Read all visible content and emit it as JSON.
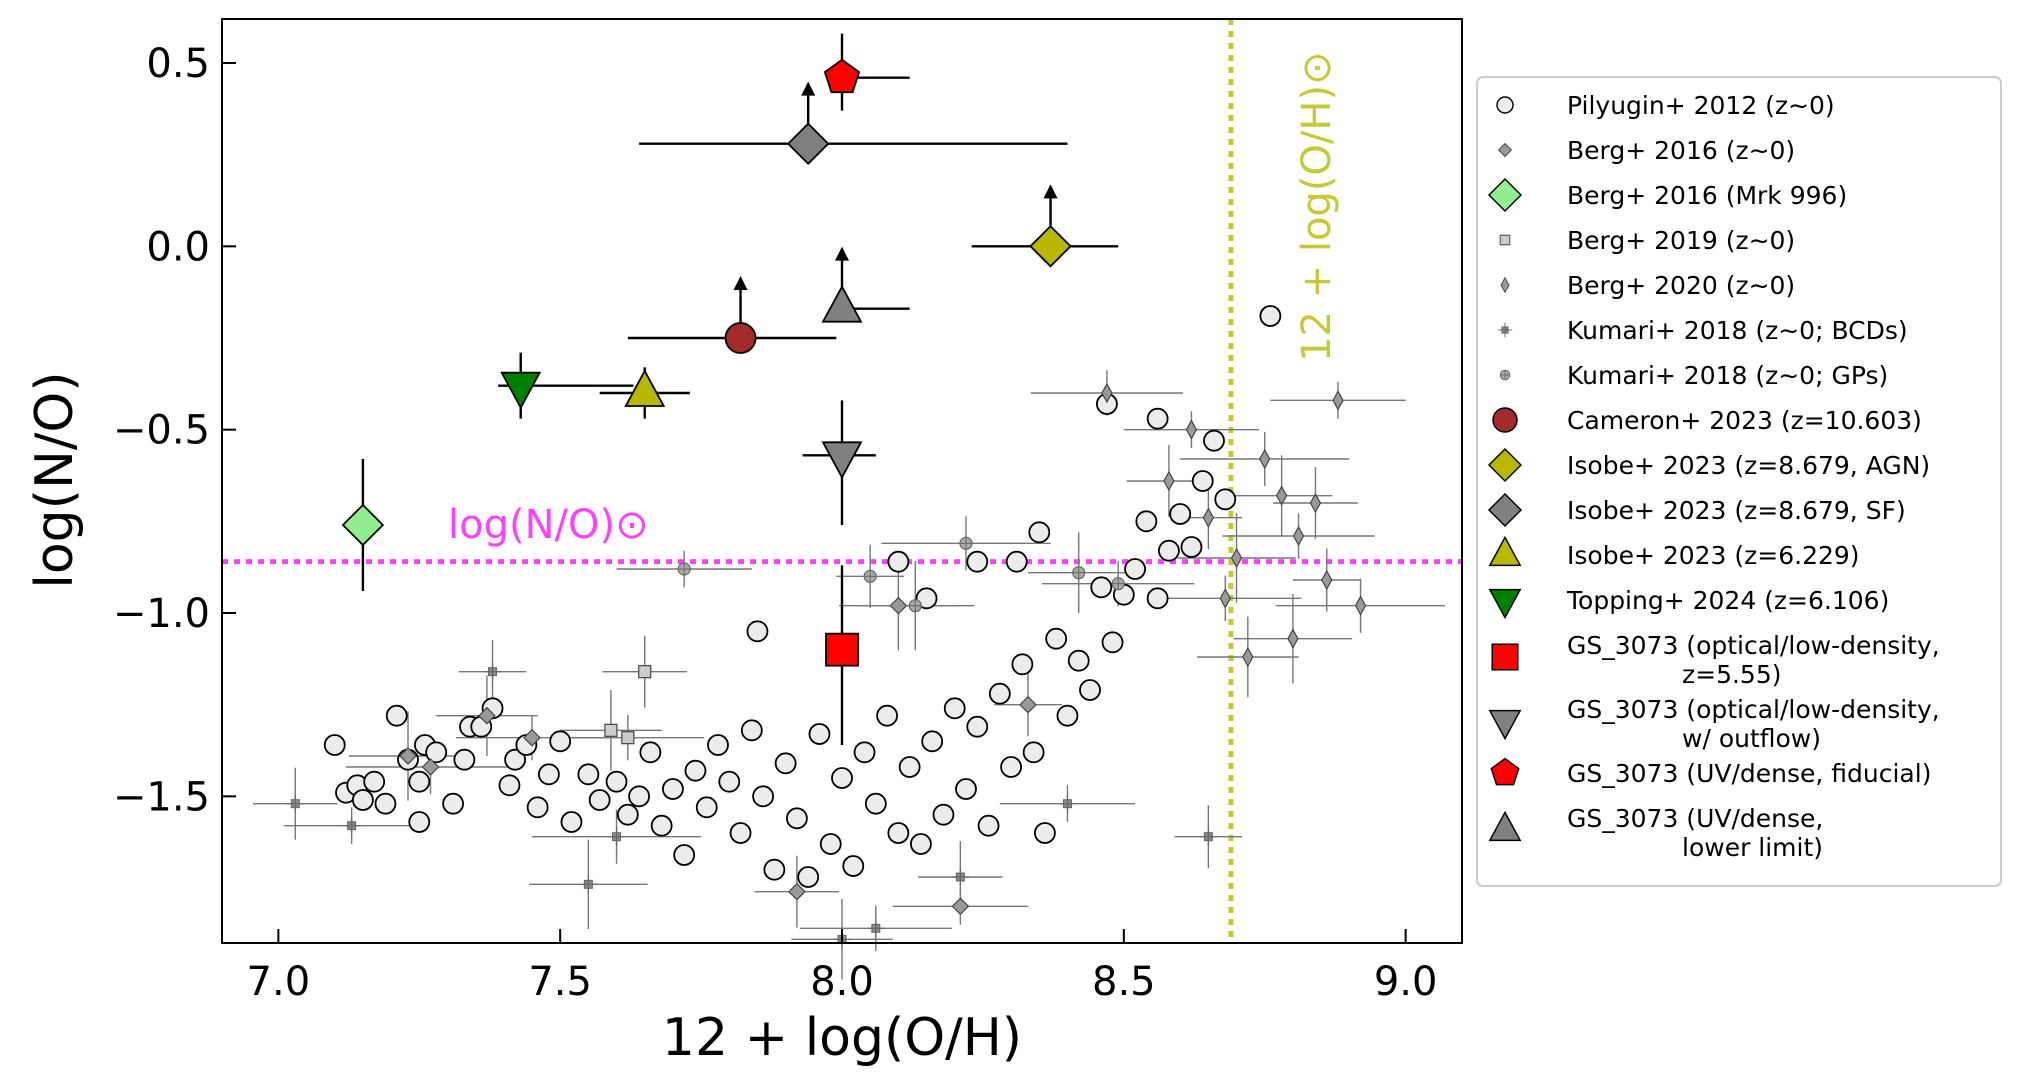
{
  "chart_data": {
    "type": "scatter",
    "xlabel": "12 + log(O/H)",
    "ylabel": "log(N/O)",
    "xlim": [
      6.9,
      9.1
    ],
    "ylim": [
      -1.9,
      0.62
    ],
    "xticks": [
      "7.0",
      "7.5",
      "8.0",
      "8.5",
      "9.0"
    ],
    "xtick_values": [
      7.0,
      7.5,
      8.0,
      8.5,
      9.0
    ],
    "yticks": [
      "0.5",
      "0.0",
      "−0.5",
      "−1.0",
      "−1.5"
    ],
    "ytick_values": [
      0.5,
      0.0,
      -0.5,
      -1.0,
      -1.5
    ],
    "grid": false,
    "legend_position": "outside-right",
    "reference_lines": {
      "solar_no": {
        "value": -0.86,
        "label": "log(N/O)⊙",
        "color": "#ff40ff"
      },
      "solar_oh": {
        "value": 8.69,
        "label": "12 + log(O/H)⊙",
        "color": "#c8c833"
      }
    },
    "series": [
      {
        "name": "Pilyugin+ 2012 (z∼0)",
        "marker": "circle-open",
        "color": "#ffffff",
        "points": [
          [
            7.1,
            -1.36
          ],
          [
            7.12,
            -1.49
          ],
          [
            7.14,
            -1.47
          ],
          [
            7.15,
            -1.51
          ],
          [
            7.17,
            -1.46
          ],
          [
            7.19,
            -1.52
          ],
          [
            7.21,
            -1.28
          ],
          [
            7.23,
            -1.4
          ],
          [
            7.25,
            -1.46
          ],
          [
            7.26,
            -1.36
          ],
          [
            7.28,
            -1.38
          ],
          [
            7.25,
            -1.57
          ],
          [
            7.31,
            -1.52
          ],
          [
            7.33,
            -1.4
          ],
          [
            7.34,
            -1.31
          ],
          [
            7.36,
            -1.31
          ],
          [
            7.38,
            -1.26
          ],
          [
            7.41,
            -1.47
          ],
          [
            7.42,
            -1.4
          ],
          [
            7.44,
            -1.36
          ],
          [
            7.46,
            -1.53
          ],
          [
            7.48,
            -1.44
          ],
          [
            7.5,
            -1.35
          ],
          [
            7.52,
            -1.57
          ],
          [
            7.55,
            -1.44
          ],
          [
            7.57,
            -1.51
          ],
          [
            7.6,
            -1.46
          ],
          [
            7.62,
            -1.55
          ],
          [
            7.64,
            -1.5
          ],
          [
            7.66,
            -1.38
          ],
          [
            7.68,
            -1.58
          ],
          [
            7.7,
            -1.48
          ],
          [
            7.72,
            -1.66
          ],
          [
            7.74,
            -1.43
          ],
          [
            7.76,
            -1.53
          ],
          [
            7.78,
            -1.36
          ],
          [
            7.8,
            -1.46
          ],
          [
            7.82,
            -1.6
          ],
          [
            7.84,
            -1.32
          ],
          [
            7.86,
            -1.5
          ],
          [
            7.88,
            -1.7
          ],
          [
            7.9,
            -1.41
          ],
          [
            7.92,
            -1.56
          ],
          [
            7.94,
            -1.72
          ],
          [
            7.96,
            -1.33
          ],
          [
            7.98,
            -1.63
          ],
          [
            8.0,
            -1.45
          ],
          [
            8.02,
            -1.69
          ],
          [
            8.04,
            -1.38
          ],
          [
            8.06,
            -1.52
          ],
          [
            8.08,
            -1.28
          ],
          [
            8.1,
            -1.6
          ],
          [
            8.12,
            -1.42
          ],
          [
            8.14,
            -1.63
          ],
          [
            8.16,
            -1.35
          ],
          [
            8.18,
            -1.55
          ],
          [
            8.2,
            -1.26
          ],
          [
            8.22,
            -1.48
          ],
          [
            8.24,
            -1.31
          ],
          [
            8.26,
            -1.58
          ],
          [
            8.28,
            -1.22
          ],
          [
            8.3,
            -1.42
          ],
          [
            8.32,
            -1.14
          ],
          [
            8.34,
            -1.38
          ],
          [
            8.36,
            -1.6
          ],
          [
            8.38,
            -1.07
          ],
          [
            8.4,
            -1.28
          ],
          [
            8.42,
            -1.13
          ],
          [
            8.44,
            -1.21
          ],
          [
            8.46,
            -0.93
          ],
          [
            8.48,
            -1.08
          ],
          [
            8.5,
            -0.95
          ],
          [
            8.52,
            -0.88
          ],
          [
            8.54,
            -0.75
          ],
          [
            8.56,
            -0.96
          ],
          [
            8.58,
            -0.83
          ],
          [
            8.6,
            -0.73
          ],
          [
            8.62,
            -0.82
          ],
          [
            8.64,
            -0.64
          ],
          [
            8.66,
            -0.53
          ],
          [
            8.68,
            -0.69
          ],
          [
            8.76,
            -0.19
          ],
          [
            8.56,
            -0.47
          ],
          [
            8.47,
            -0.43
          ],
          [
            8.35,
            -0.78
          ],
          [
            8.31,
            -0.86
          ],
          [
            8.24,
            -0.86
          ],
          [
            8.1,
            -0.86
          ],
          [
            8.15,
            -0.96
          ],
          [
            7.85,
            -1.05
          ]
        ]
      },
      {
        "name": "Berg+ 2016 (z∼0)",
        "marker": "diamond-small",
        "color": "#999999",
        "points": [
          [
            7.23,
            -1.39
          ],
          [
            7.27,
            -1.42
          ],
          [
            7.37,
            -1.28
          ],
          [
            7.45,
            -1.34
          ],
          [
            7.92,
            -1.76
          ],
          [
            8.21,
            -1.8
          ],
          [
            8.33,
            -1.25
          ],
          [
            8.1,
            -0.98
          ]
        ]
      },
      {
        "name": "Berg+ 2016 (Mrk 996)",
        "marker": "diamond",
        "color": "#90ee90",
        "points": [
          [
            7.15,
            -0.76
          ]
        ],
        "yerr": [
          0.18,
          0.18
        ]
      },
      {
        "name": "Berg+ 2019 (z∼0)",
        "marker": "square-small",
        "color": "#cccccc",
        "points": [
          [
            7.59,
            -1.32
          ],
          [
            7.62,
            -1.34
          ],
          [
            7.65,
            -1.16
          ]
        ]
      },
      {
        "name": "Berg+ 2020 (z∼0)",
        "marker": "diamond-thin",
        "color": "#999999",
        "points": [
          [
            8.47,
            -0.4
          ],
          [
            8.58,
            -0.64
          ],
          [
            8.62,
            -0.5
          ],
          [
            8.65,
            -0.74
          ],
          [
            8.7,
            -0.85
          ],
          [
            8.75,
            -0.58
          ],
          [
            8.78,
            -0.68
          ],
          [
            8.81,
            -0.79
          ],
          [
            8.84,
            -0.7
          ],
          [
            8.88,
            -0.42
          ],
          [
            8.86,
            -0.91
          ],
          [
            8.8,
            -1.07
          ],
          [
            8.92,
            -0.98
          ],
          [
            8.72,
            -1.12
          ],
          [
            8.68,
            -0.96
          ]
        ]
      },
      {
        "name": "Kumari+ 2018 (z∼0; BCDs)",
        "marker": "plus-square",
        "color": "#888888",
        "points": [
          [
            7.03,
            -1.52
          ],
          [
            7.13,
            -1.58
          ],
          [
            7.38,
            -1.16
          ],
          [
            7.55,
            -1.74
          ],
          [
            7.6,
            -1.61
          ],
          [
            8.0,
            -1.89
          ],
          [
            8.06,
            -1.86
          ],
          [
            8.21,
            -1.72
          ],
          [
            8.4,
            -1.52
          ],
          [
            8.65,
            -1.61
          ]
        ]
      },
      {
        "name": "Kumari+ 2018 (z∼0; GPs)",
        "marker": "circle-cross",
        "color": "#aaaaaa",
        "points": [
          [
            7.72,
            -0.88
          ],
          [
            8.05,
            -0.9
          ],
          [
            8.13,
            -0.98
          ],
          [
            8.22,
            -0.81
          ],
          [
            8.42,
            -0.89
          ],
          [
            8.49,
            -0.92
          ]
        ]
      },
      {
        "name": "Cameron+ 2023 (z=10.603)",
        "marker": "circle",
        "color": "#a52a2a",
        "points": [
          [
            7.82,
            -0.25
          ]
        ],
        "xerr": [
          0.2,
          0.17
        ],
        "lower_limit": true
      },
      {
        "name": "Isobe+ 2023 (z=8.679, AGN)",
        "marker": "diamond",
        "color": "#b8b800",
        "points": [
          [
            8.37,
            0.0
          ]
        ],
        "xerr": [
          0.14,
          0.12
        ],
        "lower_limit": true
      },
      {
        "name": "Isobe+ 2023 (z=8.679, SF)",
        "marker": "diamond",
        "color": "#808080",
        "points": [
          [
            7.94,
            0.28
          ]
        ],
        "xerr": [
          0.3,
          0.46
        ],
        "lower_limit": true
      },
      {
        "name": "Isobe+ 2023 (z=6.229)",
        "marker": "triangle-up",
        "color": "#b8b800",
        "points": [
          [
            7.65,
            -0.4
          ]
        ],
        "xerr": [
          0.08,
          0.08
        ],
        "yerr": [
          0.07,
          0.07
        ]
      },
      {
        "name": "Topping+ 2024 (z=6.106)",
        "marker": "triangle-down",
        "color": "#008000",
        "points": [
          [
            7.43,
            -0.38
          ]
        ],
        "xerr": [
          0.04,
          0.2
        ],
        "yerr": [
          0.09,
          0.09
        ]
      },
      {
        "name": "GS_3073 (optical/low-density, z=5.55)",
        "marker": "square",
        "color": "#ff0000",
        "points": [
          [
            8.0,
            -1.1
          ]
        ],
        "xerr": [
          0.0,
          0.0
        ],
        "yerr": [
          0.26,
          0.23
        ]
      },
      {
        "name": "GS_3073 (optical/low-density, w/ outflow)",
        "marker": "triangle-down",
        "color": "#808080",
        "points": [
          [
            8.0,
            -0.57
          ]
        ],
        "xerr": [
          0.07,
          0.06
        ],
        "yerr": [
          0.19,
          0.15
        ]
      },
      {
        "name": "GS_3073 (UV/dense, fiducial)",
        "marker": "pentagon",
        "color": "#ff0000",
        "points": [
          [
            8.0,
            0.46
          ]
        ],
        "xerr": [
          0.0,
          0.12
        ],
        "yerr": [
          0.09,
          0.12
        ]
      },
      {
        "name": "GS_3073 (UV/dense, lower limit)",
        "marker": "triangle-up",
        "color": "#808080",
        "points": [
          [
            8.0,
            -0.17
          ]
        ],
        "xerr": [
          0.0,
          0.12
        ],
        "lower_limit": true
      }
    ]
  },
  "legend": {
    "entries": [
      {
        "text": "Pilyugin+ 2012 (z∼0)",
        "marker": "circle-open",
        "color": "#ffffff"
      },
      {
        "text": "Berg+ 2016 (z∼0)",
        "marker": "diamond-small",
        "color": "#999999"
      },
      {
        "text": "Berg+ 2016 (Mrk 996)",
        "marker": "diamond",
        "color": "#90ee90"
      },
      {
        "text": "Berg+ 2019 (z∼0)",
        "marker": "square-small",
        "color": "#cccccc"
      },
      {
        "text": "Berg+ 2020 (z∼0)",
        "marker": "diamond-thin",
        "color": "#999999"
      },
      {
        "text": "Kumari+ 2018 (z∼0; BCDs)",
        "marker": "plus-square",
        "color": "#888888"
      },
      {
        "text": "Kumari+ 2018 (z∼0; GPs)",
        "marker": "circle-cross",
        "color": "#aaaaaa"
      },
      {
        "text": "Cameron+ 2023 (z=10.603)",
        "marker": "circle",
        "color": "#a52a2a"
      },
      {
        "text": "Isobe+ 2023 (z=8.679, AGN)",
        "marker": "diamond",
        "color": "#b8b800"
      },
      {
        "text": "Isobe+ 2023 (z=8.679, SF)",
        "marker": "diamond",
        "color": "#808080"
      },
      {
        "text": "Isobe+ 2023 (z=6.229)",
        "marker": "triangle-up",
        "color": "#b8b800"
      },
      {
        "text": "Topping+ 2024 (z=6.106)",
        "marker": "triangle-down",
        "color": "#008000"
      },
      {
        "text": "GS_3073 (optical/low-density,",
        "text2": "z=5.55)",
        "marker": "square",
        "color": "#ff0000"
      },
      {
        "text": "GS_3073 (optical/low-density,",
        "text2": "w/ outflow)",
        "marker": "triangle-down",
        "color": "#808080"
      },
      {
        "text": "GS_3073 (UV/dense, fiducial)",
        "marker": "pentagon",
        "color": "#ff0000"
      },
      {
        "text": "GS_3073 (UV/dense,",
        "text2": "lower limit)",
        "marker": "triangle-up",
        "color": "#808080"
      }
    ]
  }
}
